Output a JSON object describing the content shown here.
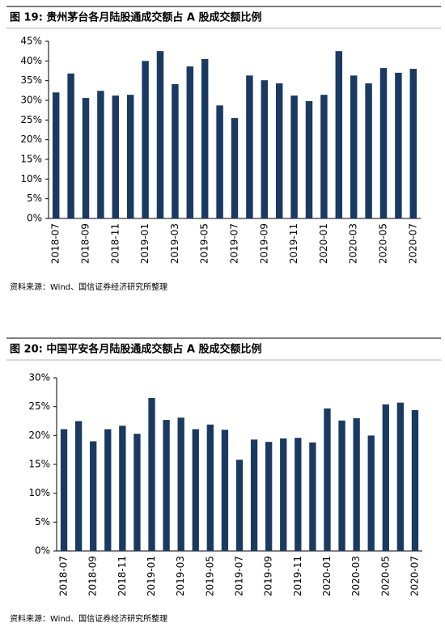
{
  "chart_data": [
    {
      "type": "bar",
      "title": "图 19: 贵州茅台各月陆股通成交额占 A 股成交额比例",
      "source": "资料来源：Wind、国信证券经济研究所整理",
      "categories": [
        "2018-07",
        null,
        "2018-09",
        null,
        "2018-11",
        null,
        "2019-01",
        null,
        "2019-03",
        null,
        "2019-05",
        null,
        "2019-07",
        null,
        "2019-09",
        null,
        "2019-11",
        null,
        "2020-01",
        null,
        "2020-03",
        null,
        "2020-05",
        null,
        "2020-07"
      ],
      "values": [
        32.0,
        36.8,
        30.6,
        32.4,
        31.2,
        31.4,
        40.0,
        42.5,
        34.1,
        38.6,
        40.5,
        28.7,
        25.5,
        36.3,
        35.1,
        34.3,
        31.2,
        29.8,
        31.4,
        42.5,
        36.3,
        34.3,
        38.2,
        37.0,
        38.0
      ],
      "color": "#1b3a62",
      "ylim": [
        0,
        45
      ],
      "yticks": [
        {
          "value": 0,
          "label": "0%"
        },
        {
          "value": 5,
          "label": "5%"
        },
        {
          "value": 10,
          "label": "10%"
        },
        {
          "value": 15,
          "label": "15%"
        },
        {
          "value": 20,
          "label": "20%"
        },
        {
          "value": 25,
          "label": "25%"
        },
        {
          "value": 30,
          "label": "30%"
        },
        {
          "value": 35,
          "label": "35%"
        },
        {
          "value": 40,
          "label": "40%"
        },
        {
          "value": 45,
          "label": "45%"
        }
      ]
    },
    {
      "type": "bar",
      "title": "图 20: 中国平安各月陆股通成交额占 A 股成交额比例",
      "source": "资料来源：Wind、国信证券经济研究所整理",
      "categories": [
        "2018-07",
        null,
        "2018-09",
        null,
        "2018-11",
        null,
        "2019-01",
        null,
        "2019-03",
        null,
        "2019-05",
        null,
        "2019-07",
        null,
        "2019-09",
        null,
        "2019-11",
        null,
        "2020-01",
        null,
        "2020-03",
        null,
        "2020-05",
        null,
        "2020-07"
      ],
      "values": [
        21.1,
        22.5,
        19.0,
        21.1,
        21.7,
        20.3,
        26.5,
        22.7,
        23.1,
        21.1,
        21.9,
        21.0,
        15.8,
        19.3,
        18.9,
        19.5,
        19.6,
        18.8,
        24.7,
        22.6,
        23.0,
        20.0,
        25.4,
        25.7,
        24.4
      ],
      "color": "#1b3a62",
      "ylim": [
        0,
        30
      ],
      "yticks": [
        {
          "value": 0,
          "label": "0%"
        },
        {
          "value": 5,
          "label": "5%"
        },
        {
          "value": 10,
          "label": "10%"
        },
        {
          "value": 15,
          "label": "15%"
        },
        {
          "value": 20,
          "label": "20%"
        },
        {
          "value": 25,
          "label": "25%"
        },
        {
          "value": 30,
          "label": "30%"
        }
      ]
    }
  ]
}
